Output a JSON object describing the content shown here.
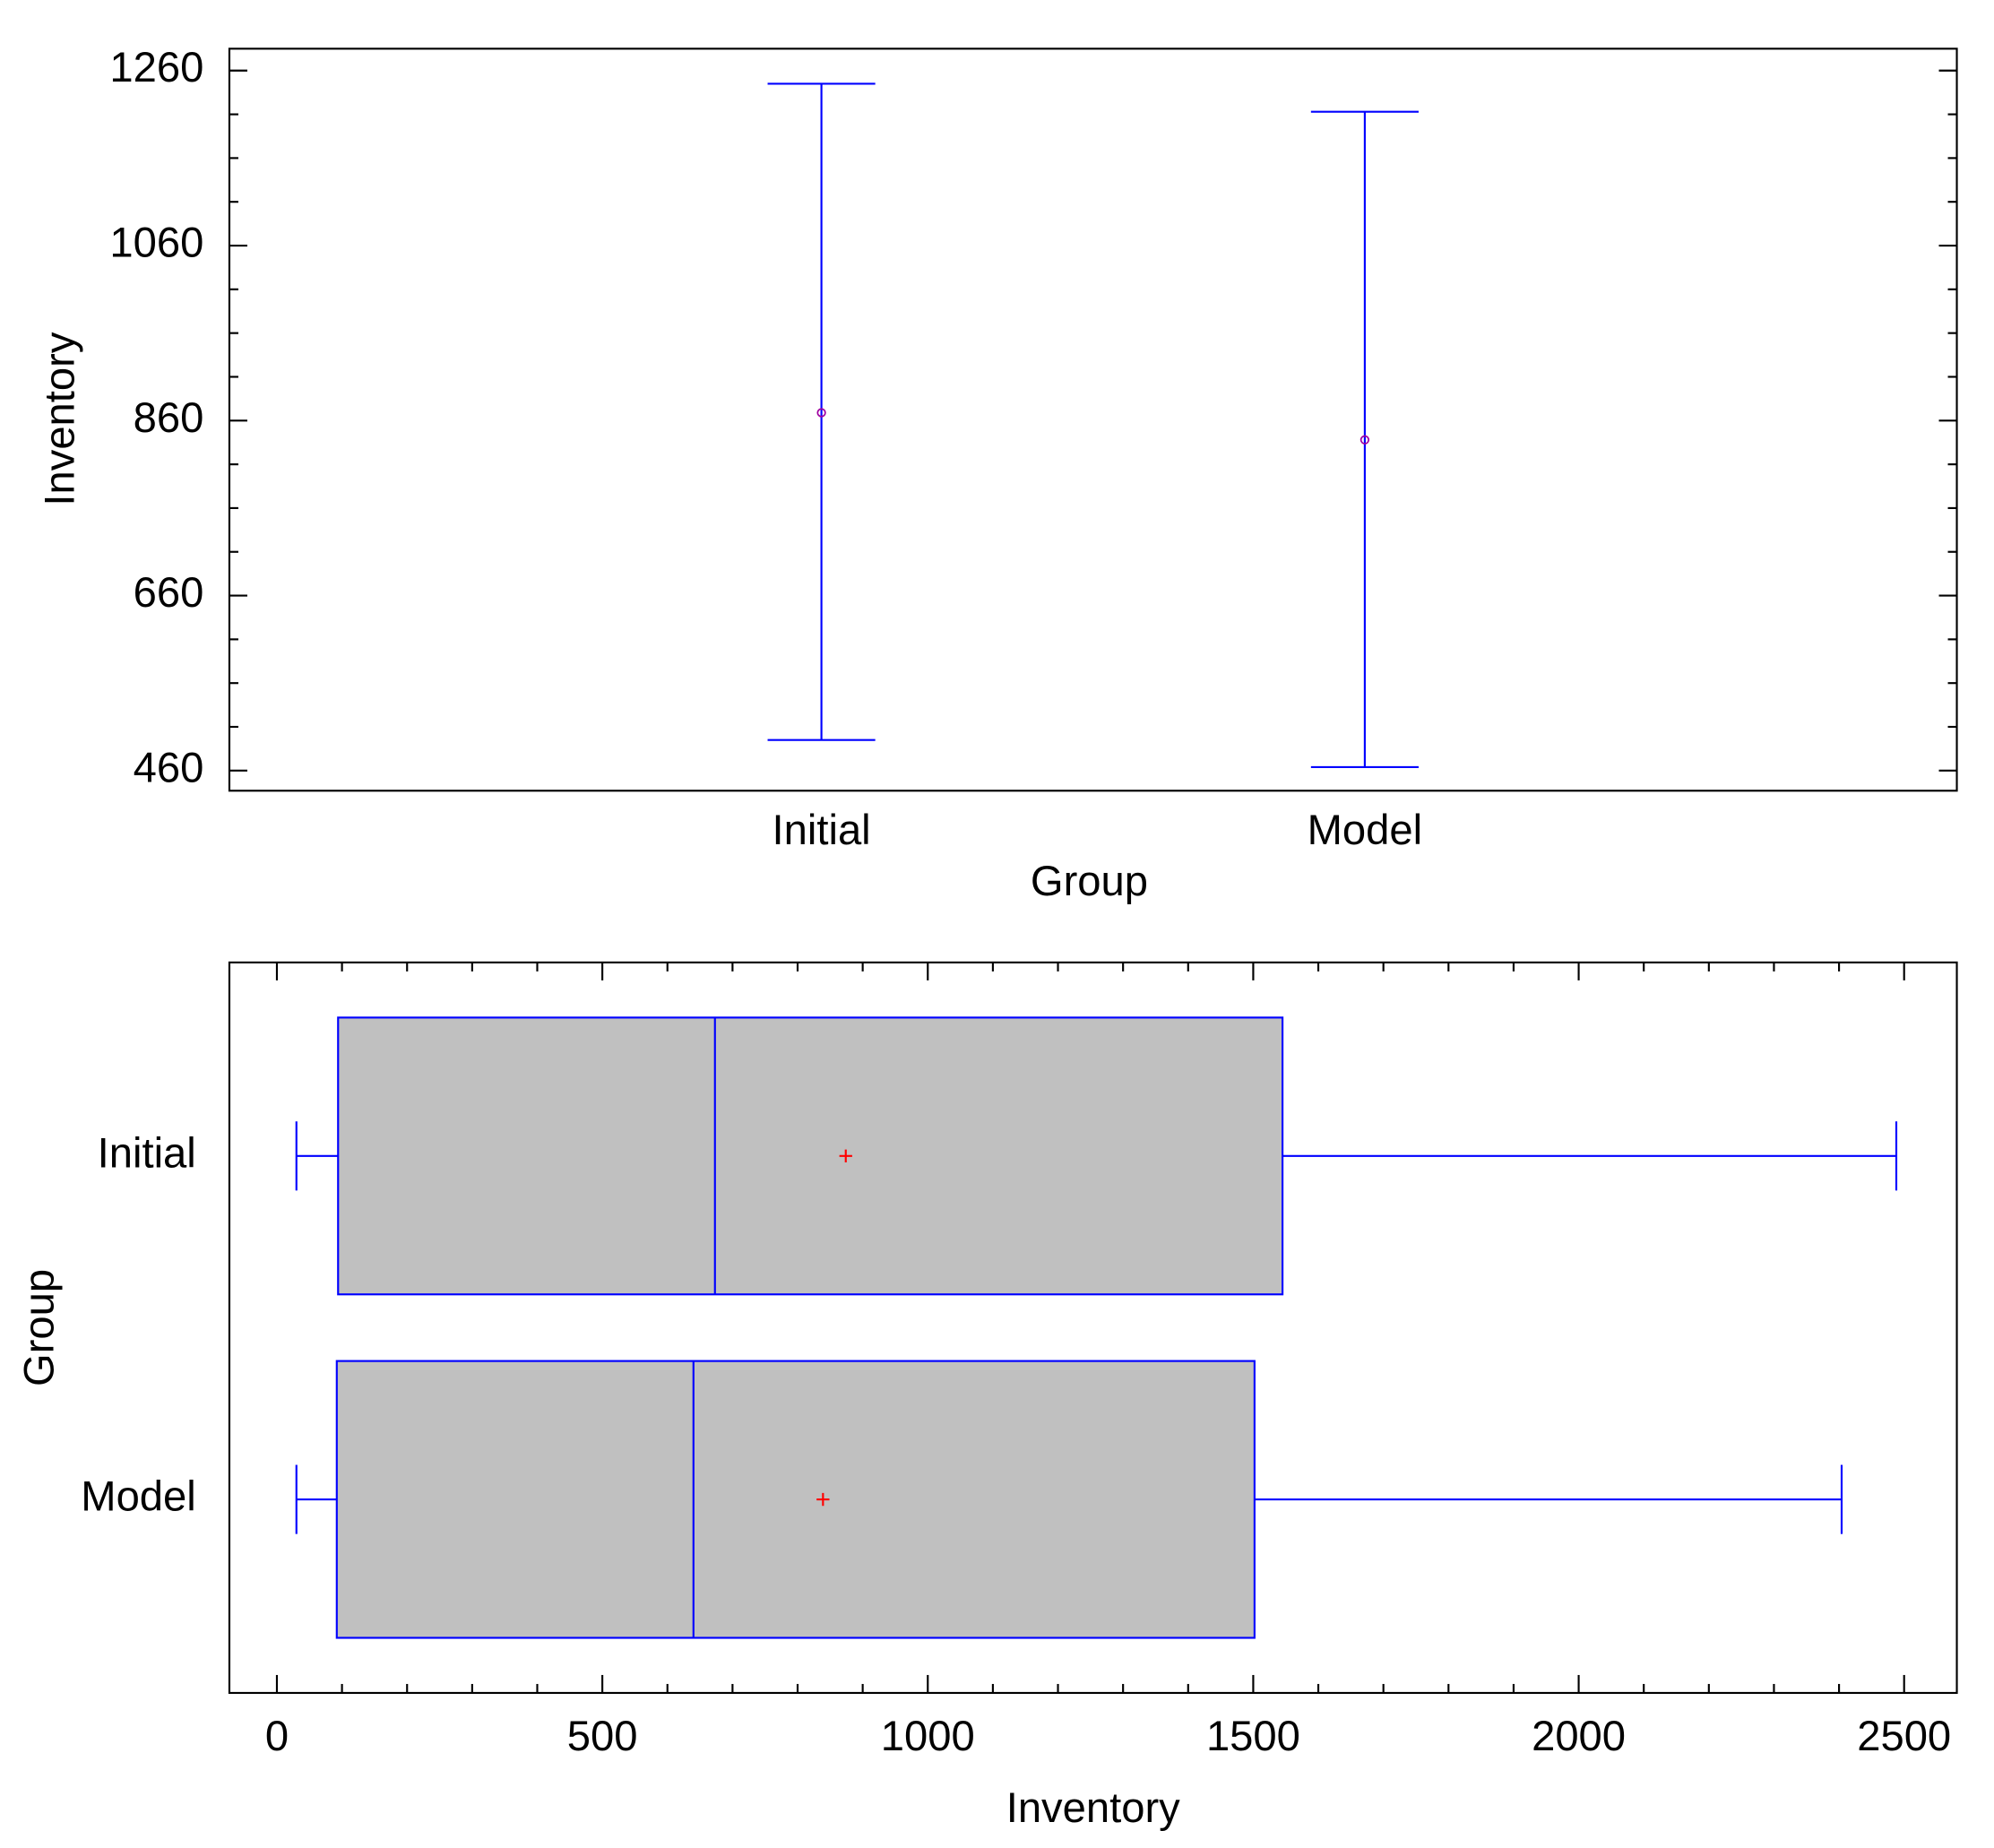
{
  "chart_data": [
    {
      "type": "errorbar",
      "x_label": "Group",
      "y_label": "Inventory",
      "categories": [
        "Initial",
        "Model"
      ],
      "means": [
        869,
        838
      ],
      "lower": [
        495,
        464
      ],
      "upper": [
        1245,
        1213
      ],
      "color": "#0000ff",
      "mean_color": "#a000a0",
      "ylim": [
        437,
        1285
      ],
      "yticks": [
        460,
        660,
        860,
        1060,
        1260
      ]
    },
    {
      "type": "box",
      "x_label": "Inventory",
      "y_label": "Group",
      "categories": [
        "Initial",
        "Model"
      ],
      "min": [
        30,
        30
      ],
      "q1": [
        94,
        92
      ],
      "median": [
        673,
        640
      ],
      "q3": [
        1545,
        1502
      ],
      "max": [
        2488,
        2404
      ],
      "mean": [
        874,
        839
      ],
      "color": "#0000ff",
      "box_fill": "#c0c0c0",
      "mean_color": "#ff0000",
      "xlim": [
        -73,
        2581
      ],
      "xticks": [
        0,
        500,
        1000,
        1500,
        2000,
        2500
      ]
    }
  ]
}
